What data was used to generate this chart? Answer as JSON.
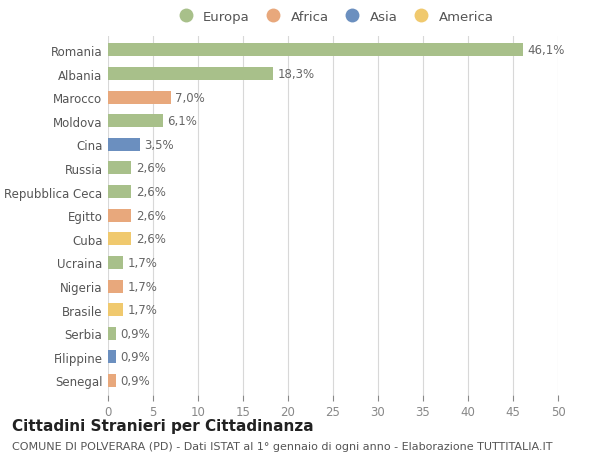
{
  "countries": [
    "Romania",
    "Albania",
    "Marocco",
    "Moldova",
    "Cina",
    "Russia",
    "Repubblica Ceca",
    "Egitto",
    "Cuba",
    "Ucraina",
    "Nigeria",
    "Brasile",
    "Serbia",
    "Filippine",
    "Senegal"
  ],
  "values": [
    46.1,
    18.3,
    7.0,
    6.1,
    3.5,
    2.6,
    2.6,
    2.6,
    2.6,
    1.7,
    1.7,
    1.7,
    0.9,
    0.9,
    0.9
  ],
  "labels": [
    "46,1%",
    "18,3%",
    "7,0%",
    "6,1%",
    "3,5%",
    "2,6%",
    "2,6%",
    "2,6%",
    "2,6%",
    "1,7%",
    "1,7%",
    "1,7%",
    "0,9%",
    "0,9%",
    "0,9%"
  ],
  "continents": [
    "Europa",
    "Europa",
    "Africa",
    "Europa",
    "Asia",
    "Europa",
    "Europa",
    "Africa",
    "America",
    "Europa",
    "Africa",
    "America",
    "Europa",
    "Asia",
    "Africa"
  ],
  "continent_colors": {
    "Europa": "#a8c08a",
    "Africa": "#e8a87c",
    "Asia": "#6b8fbf",
    "America": "#f0c96e"
  },
  "legend_order": [
    "Europa",
    "Africa",
    "Asia",
    "America"
  ],
  "xlim": [
    0,
    50
  ],
  "xticks": [
    0,
    5,
    10,
    15,
    20,
    25,
    30,
    35,
    40,
    45,
    50
  ],
  "title": "Cittadini Stranieri per Cittadinanza",
  "subtitle": "COMUNE DI POLVERARA (PD) - Dati ISTAT al 1° gennaio di ogni anno - Elaborazione TUTTITALIA.IT",
  "bg_color": "#ffffff",
  "grid_color": "#d8d8d8",
  "bar_height": 0.55,
  "label_fontsize": 8.5,
  "tick_fontsize": 8.5,
  "title_fontsize": 11,
  "subtitle_fontsize": 8
}
